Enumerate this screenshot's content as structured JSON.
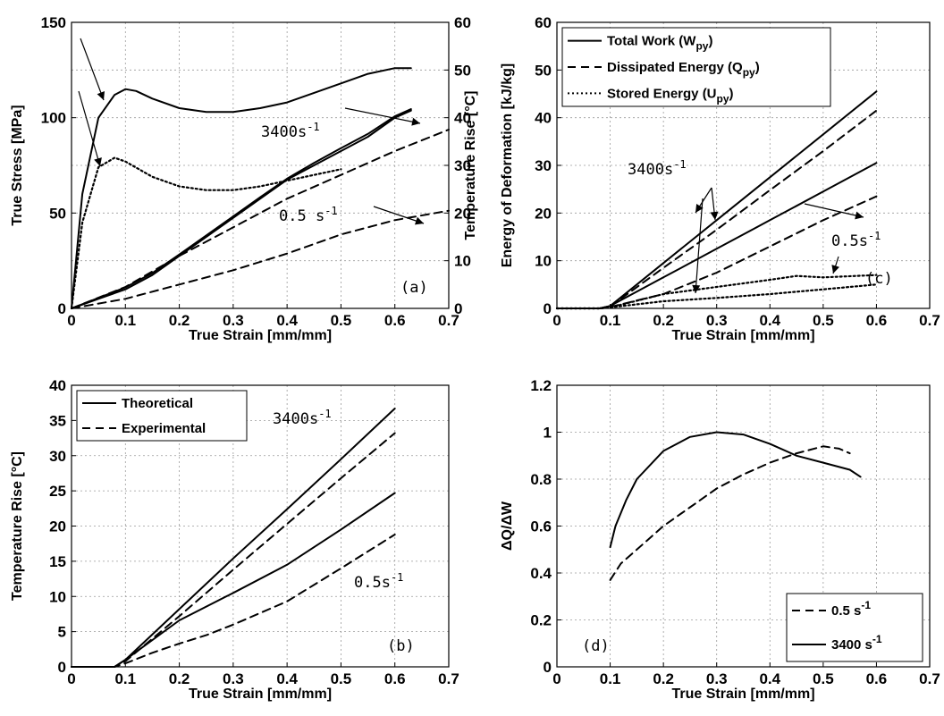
{
  "chart_data": [
    {
      "type": "line",
      "panel_label": "(a)",
      "xlabel": "True Strain [mm/mm]",
      "ylabel": "True Stress [MPa]",
      "y2label": "Temperature Rise [°C]",
      "xlim": [
        0,
        0.7
      ],
      "ylim": [
        0,
        150
      ],
      "y2lim": [
        0,
        60
      ],
      "xticks": [
        "0",
        "0.1",
        "0.2",
        "0.3",
        "0.4",
        "0.5",
        "0.6",
        "0.7"
      ],
      "yticks": [
        "0",
        "50",
        "100",
        "150"
      ],
      "y2ticks": [
        "0",
        "10",
        "20",
        "30",
        "40",
        "50",
        "60"
      ],
      "grid": true,
      "annotations": [
        {
          "text": "3400s",
          "sup": "-1"
        },
        {
          "text": "0.5 s",
          "sup": "-1"
        }
      ],
      "series": [
        {
          "axis": "left",
          "style": "solid",
          "x": [
            0,
            0.02,
            0.05,
            0.08,
            0.1,
            0.12,
            0.15,
            0.2,
            0.25,
            0.3,
            0.35,
            0.4,
            0.45,
            0.5,
            0.55,
            0.6,
            0.63
          ],
          "y": [
            0,
            60,
            100,
            112,
            115,
            114,
            110,
            105,
            103,
            103,
            105,
            108,
            113,
            118,
            123,
            126,
            126
          ]
        },
        {
          "axis": "left",
          "style": "dotted",
          "x": [
            0,
            0.02,
            0.05,
            0.08,
            0.1,
            0.15,
            0.2,
            0.25,
            0.3,
            0.35,
            0.4,
            0.45,
            0.5
          ],
          "y": [
            0,
            45,
            74,
            79,
            77,
            69,
            64,
            62,
            62,
            64,
            67,
            70,
            73
          ]
        },
        {
          "axis": "right",
          "style": "solid",
          "x": [
            0,
            0.05,
            0.1,
            0.15,
            0.2,
            0.25,
            0.3,
            0.35,
            0.4,
            0.45,
            0.5,
            0.55,
            0.6,
            0.63
          ],
          "y": [
            0,
            2,
            4,
            7,
            11,
            15,
            19,
            23,
            27,
            30,
            33,
            36,
            40,
            41.5
          ]
        },
        {
          "axis": "right",
          "style": "solid",
          "x": [
            0,
            0.05,
            0.1,
            0.15,
            0.2,
            0.25,
            0.3,
            0.35,
            0.4,
            0.45,
            0.5,
            0.55,
            0.6,
            0.63
          ],
          "y": [
            0,
            2.2,
            4.4,
            7.4,
            11.3,
            15.3,
            19.3,
            23.3,
            27.2,
            30.5,
            33.6,
            36.6,
            40.3,
            41.8
          ]
        },
        {
          "axis": "right",
          "style": "dashed",
          "x": [
            0,
            0.1,
            0.2,
            0.3,
            0.4,
            0.5,
            0.6,
            0.7
          ],
          "y": [
            0,
            4.5,
            11,
            17,
            23,
            28,
            33,
            37.5
          ]
        },
        {
          "axis": "right",
          "style": "dashed",
          "x": [
            0,
            0.1,
            0.2,
            0.3,
            0.4,
            0.45,
            0.5,
            0.55,
            0.6,
            0.7
          ],
          "y": [
            0,
            2,
            5,
            8,
            11.5,
            13.5,
            15.5,
            17,
            18.5,
            20.5
          ]
        }
      ]
    },
    {
      "type": "line",
      "panel_label": "(c)",
      "xlabel": "True Strain [mm/mm]",
      "ylabel": "Energy of Deformation [kJ/kg]",
      "xlim": [
        0,
        0.7
      ],
      "ylim": [
        0,
        60
      ],
      "xticks": [
        "0",
        "0.1",
        "0.2",
        "0.3",
        "0.4",
        "0.5",
        "0.6",
        "0.7"
      ],
      "yticks": [
        "0",
        "10",
        "20",
        "30",
        "40",
        "50",
        "60"
      ],
      "grid": true,
      "legend_position": "top-left",
      "legend": [
        {
          "style": "solid",
          "text": "Total Work (W",
          "sub": "py",
          "close": ")"
        },
        {
          "style": "dashed",
          "text": "Dissipated Energy (Q",
          "sub": "py",
          "close": ")"
        },
        {
          "style": "dotted",
          "text": "Stored Energy (U",
          "sub": "py",
          "close": ")"
        }
      ],
      "annotations": [
        {
          "text": "3400s",
          "sup": "-1"
        },
        {
          "text": "0.5s",
          "sup": "-1"
        }
      ],
      "series": [
        {
          "style": "solid",
          "x": [
            0,
            0.08,
            0.1,
            0.2,
            0.3,
            0.4,
            0.5,
            0.6
          ],
          "y": [
            0,
            0,
            0.5,
            9.5,
            18.5,
            27.5,
            36.5,
            45.5
          ]
        },
        {
          "style": "dashed",
          "x": [
            0,
            0.08,
            0.1,
            0.2,
            0.3,
            0.4,
            0.5,
            0.6
          ],
          "y": [
            0,
            0,
            0.4,
            8.5,
            16.5,
            24.8,
            33,
            41.5
          ]
        },
        {
          "style": "solid",
          "x": [
            0,
            0.08,
            0.1,
            0.2,
            0.3,
            0.4,
            0.5,
            0.6
          ],
          "y": [
            0,
            0,
            0.5,
            6.5,
            12.5,
            18.5,
            24.5,
            30.5
          ]
        },
        {
          "style": "dashed",
          "x": [
            0,
            0.08,
            0.1,
            0.2,
            0.3,
            0.4,
            0.5,
            0.6
          ],
          "y": [
            0,
            0,
            0.3,
            3,
            7.5,
            13,
            18.5,
            23.5
          ]
        },
        {
          "style": "dotted",
          "x": [
            0,
            0.08,
            0.1,
            0.2,
            0.3,
            0.4,
            0.45,
            0.5,
            0.6
          ],
          "y": [
            0,
            0,
            0.2,
            3,
            4.5,
            6,
            6.8,
            6.5,
            7
          ]
        },
        {
          "style": "dotted",
          "x": [
            0,
            0.08,
            0.1,
            0.2,
            0.3,
            0.4,
            0.5,
            0.6
          ],
          "y": [
            0,
            0,
            0.2,
            1.5,
            2.2,
            3,
            4,
            5
          ]
        }
      ]
    },
    {
      "type": "line",
      "panel_label": "(b)",
      "xlabel": "True Strain [mm/mm]",
      "ylabel": "Temperature Rise [°C]",
      "xlim": [
        0,
        0.7
      ],
      "ylim": [
        0,
        40
      ],
      "xticks": [
        "0",
        "0.1",
        "0.2",
        "0.3",
        "0.4",
        "0.5",
        "0.6",
        "0.7"
      ],
      "yticks": [
        "0",
        "5",
        "10",
        "15",
        "20",
        "25",
        "30",
        "35",
        "40"
      ],
      "grid": true,
      "legend_position": "top-left",
      "legend": [
        {
          "style": "solid",
          "text": "Theoretical"
        },
        {
          "style": "dashed",
          "text": "Experimental"
        }
      ],
      "annotations": [
        {
          "text": "3400s",
          "sup": "-1"
        },
        {
          "text": "0.5s",
          "sup": "-1"
        }
      ],
      "series": [
        {
          "style": "solid",
          "x": [
            0,
            0.08,
            0.1,
            0.2,
            0.3,
            0.4,
            0.5,
            0.6
          ],
          "y": [
            0,
            0,
            1,
            8.2,
            15.4,
            22.4,
            29.5,
            36.7
          ]
        },
        {
          "style": "dashed",
          "x": [
            0,
            0.08,
            0.1,
            0.2,
            0.3,
            0.4,
            0.5,
            0.6
          ],
          "y": [
            0,
            0,
            0.8,
            7.2,
            13.8,
            20.3,
            26.8,
            33.2
          ]
        },
        {
          "style": "solid",
          "x": [
            0,
            0.08,
            0.1,
            0.2,
            0.3,
            0.4,
            0.5,
            0.6
          ],
          "y": [
            0,
            0,
            1,
            6.6,
            10.5,
            14.5,
            19.5,
            24.7
          ]
        },
        {
          "style": "dashed",
          "x": [
            0,
            0.08,
            0.1,
            0.15,
            0.2,
            0.25,
            0.3,
            0.4,
            0.5,
            0.6
          ],
          "y": [
            0,
            0,
            0.5,
            2,
            3.3,
            4.5,
            6,
            9.3,
            14,
            18.8
          ]
        }
      ]
    },
    {
      "type": "line",
      "panel_label": "(d)",
      "xlabel": "True Strain [mm/mm]",
      "ylabel": "ΔQ/ΔW",
      "xlim": [
        0,
        0.7
      ],
      "ylim": [
        0,
        1.2
      ],
      "xticks": [
        "0",
        "0.1",
        "0.2",
        "0.3",
        "0.4",
        "0.5",
        "0.6",
        "0.7"
      ],
      "yticks": [
        "0",
        "0.2",
        "0.4",
        "0.6",
        "0.8",
        "1",
        "1.2"
      ],
      "grid": true,
      "legend_position": "bottom-right",
      "legend": [
        {
          "style": "dashed",
          "text": "0.5 s",
          "sup": "-1"
        },
        {
          "style": "solid",
          "text": "3400 s",
          "sup": "-1"
        }
      ],
      "series": [
        {
          "style": "dashed",
          "x": [
            0.1,
            0.12,
            0.15,
            0.2,
            0.25,
            0.3,
            0.35,
            0.4,
            0.45,
            0.5,
            0.53,
            0.55
          ],
          "y": [
            0.37,
            0.44,
            0.5,
            0.6,
            0.68,
            0.76,
            0.82,
            0.87,
            0.91,
            0.94,
            0.93,
            0.91
          ]
        },
        {
          "style": "solid",
          "x": [
            0.1,
            0.11,
            0.13,
            0.15,
            0.2,
            0.25,
            0.3,
            0.35,
            0.4,
            0.45,
            0.5,
            0.55,
            0.57
          ],
          "y": [
            0.51,
            0.6,
            0.71,
            0.8,
            0.92,
            0.98,
            1.0,
            0.99,
            0.95,
            0.9,
            0.87,
            0.84,
            0.81
          ]
        }
      ]
    }
  ]
}
